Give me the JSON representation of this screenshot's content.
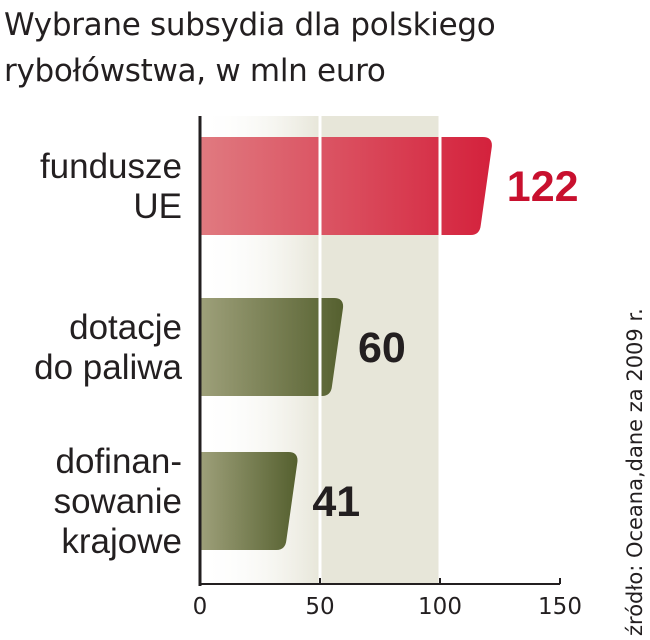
{
  "title_lines": [
    "Wybrane subsydia dla polskiego",
    "rybołówstwa, w mln euro"
  ],
  "source": "źródło: Oceana,dane za 2009 r.",
  "colors": {
    "highlight_bar": "#d4213c",
    "highlight_bar_light": "#e07a80",
    "highlight_text": "#c8102e",
    "other_bar": "#55602f",
    "other_bar_light": "#9ea07a",
    "value_text": "#231f20",
    "background_band": "#e7e6d9"
  },
  "chart_data": {
    "type": "bar",
    "orientation": "horizontal",
    "title": "Wybrane subsydia dla polskiego rybołówstwa, w mln euro",
    "categories": [
      "fundusze UE",
      "dotacje do paliwa",
      "dofinansowanie krajowe"
    ],
    "category_label_lines": [
      [
        "fundusze",
        "UE"
      ],
      [
        "dotacje",
        "do paliwa"
      ],
      [
        "dofinan-",
        "sowanie",
        "krajowe"
      ]
    ],
    "values": [
      122,
      60,
      41
    ],
    "value_labels": [
      "122",
      "60",
      "41"
    ],
    "highlight_index": 0,
    "xlim": [
      0,
      150
    ],
    "xticks": [
      0,
      50,
      100,
      150
    ],
    "grid": true,
    "xlabel": "",
    "ylabel": ""
  }
}
